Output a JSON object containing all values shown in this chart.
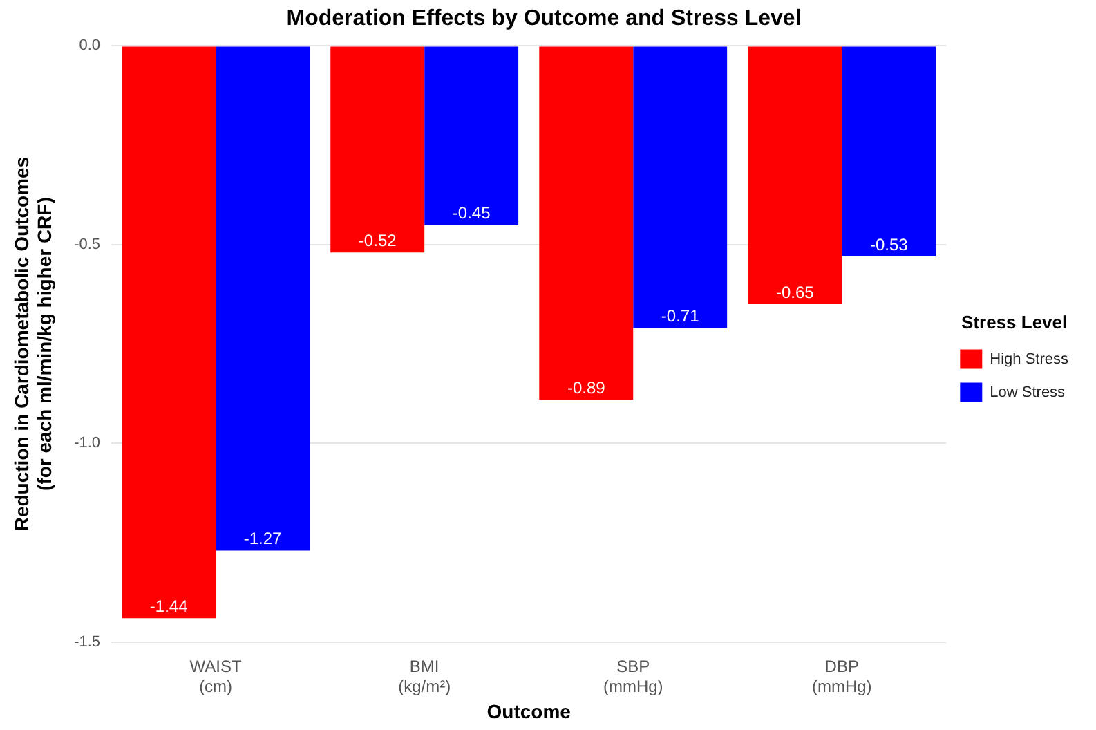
{
  "chart_data": {
    "type": "bar",
    "title": "Moderation Effects by Outcome and Stress Level",
    "xlabel": "Outcome",
    "ylabel": "Reduction in Cardiometabolic Outcomes\n(for each ml/min/kg higher CRF)",
    "legend_title": "Stress Level",
    "categories": [
      "WAIST\n(cm)",
      "BMI\n(kg/m²)",
      "SBP\n(mmHg)",
      "DBP\n(mmHg)"
    ],
    "series": [
      {
        "name": "High Stress",
        "color": "#ff0000",
        "values": [
          -1.44,
          -0.52,
          -0.89,
          -0.65
        ]
      },
      {
        "name": "Low Stress",
        "color": "#0000ff",
        "values": [
          -1.27,
          -0.45,
          -0.71,
          -0.53
        ]
      }
    ],
    "ylim": [
      -1.5,
      0
    ],
    "yticks": [
      {
        "value": -1.5,
        "label": "-1.5"
      },
      {
        "value": -1.0,
        "label": "-1.0"
      },
      {
        "value": -0.5,
        "label": "-0.5"
      },
      {
        "value": 0,
        "label": "0.0"
      }
    ],
    "grid": "y",
    "legend": "right",
    "data_labels": true
  }
}
